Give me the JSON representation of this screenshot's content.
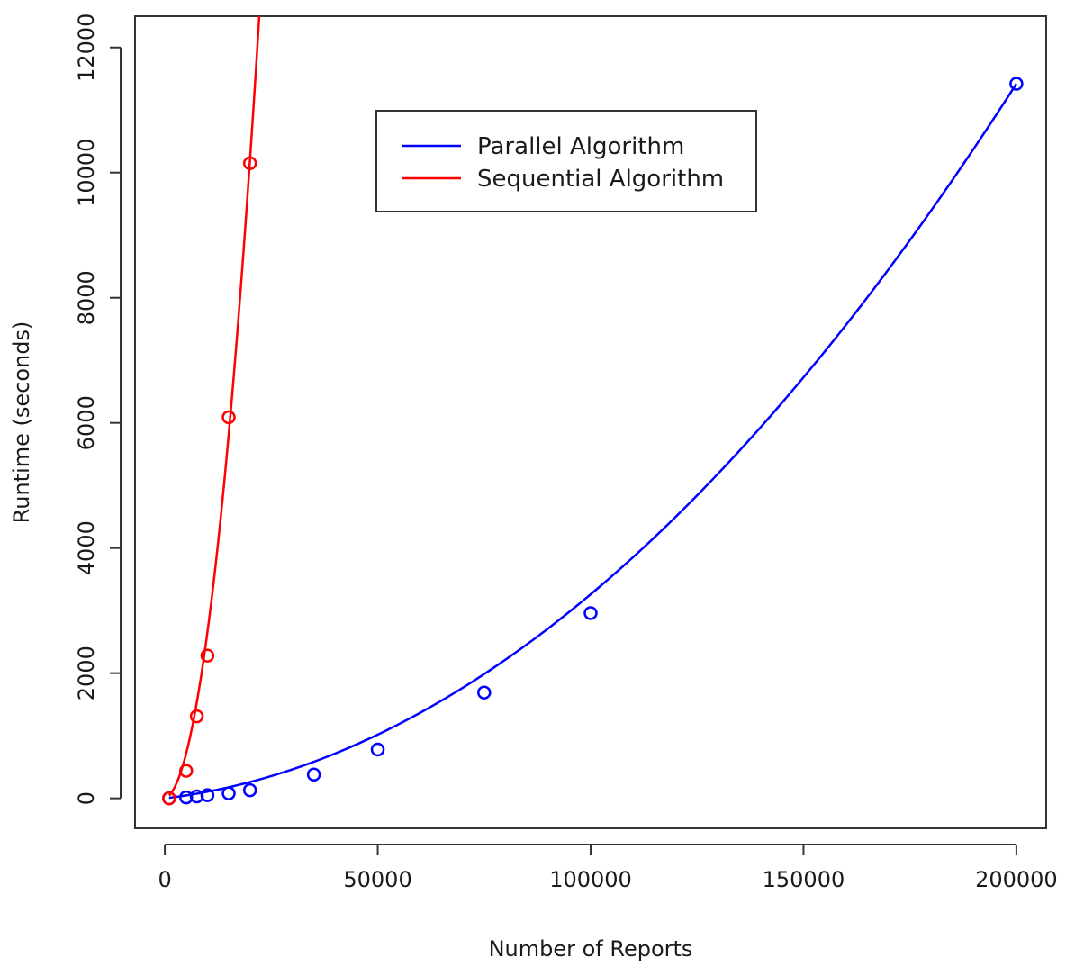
{
  "chart_data": {
    "type": "scatter",
    "title": "",
    "xlabel": "Number of Reports",
    "ylabel": "Runtime (seconds)",
    "xlim": [
      -7000,
      207000
    ],
    "ylim": [
      -480,
      12500
    ],
    "x_ticks": [
      0,
      50000,
      100000,
      150000,
      200000
    ],
    "x_tick_labels": [
      "0",
      "50000",
      "100000",
      "150000",
      "200000"
    ],
    "y_ticks": [
      0,
      2000,
      4000,
      6000,
      8000,
      10000,
      12000
    ],
    "y_tick_labels": [
      "0",
      "2000",
      "4000",
      "6000",
      "8000",
      "10000",
      "12000"
    ],
    "grid": false,
    "legend": {
      "position": "top-center",
      "entries": [
        "Parallel Algorithm",
        "Sequential Algorithm"
      ]
    },
    "series": [
      {
        "name": "Parallel Algorithm",
        "color": "#0000ff",
        "points": [
          [
            1000,
            2
          ],
          [
            5000,
            15
          ],
          [
            7500,
            30
          ],
          [
            10000,
            50
          ],
          [
            15000,
            80
          ],
          [
            20000,
            130
          ],
          [
            35000,
            380
          ],
          [
            50000,
            780
          ],
          [
            75000,
            1690
          ],
          [
            100000,
            2960
          ],
          [
            200000,
            11420
          ]
        ],
        "fit": {
          "form": "a*x^2 + b*x",
          "a": 2.45e-07,
          "b": 0.0081
        }
      },
      {
        "name": "Sequential Algorithm",
        "color": "#ff0000",
        "points": [
          [
            1000,
            0
          ],
          [
            5000,
            440
          ],
          [
            7500,
            1310
          ],
          [
            10000,
            2280
          ],
          [
            15000,
            6090
          ],
          [
            20000,
            10150
          ]
        ],
        "fit": {
          "form": "a*x^2 + b*x",
          "a": 2.45e-05,
          "b": 0.0203
        }
      }
    ]
  }
}
